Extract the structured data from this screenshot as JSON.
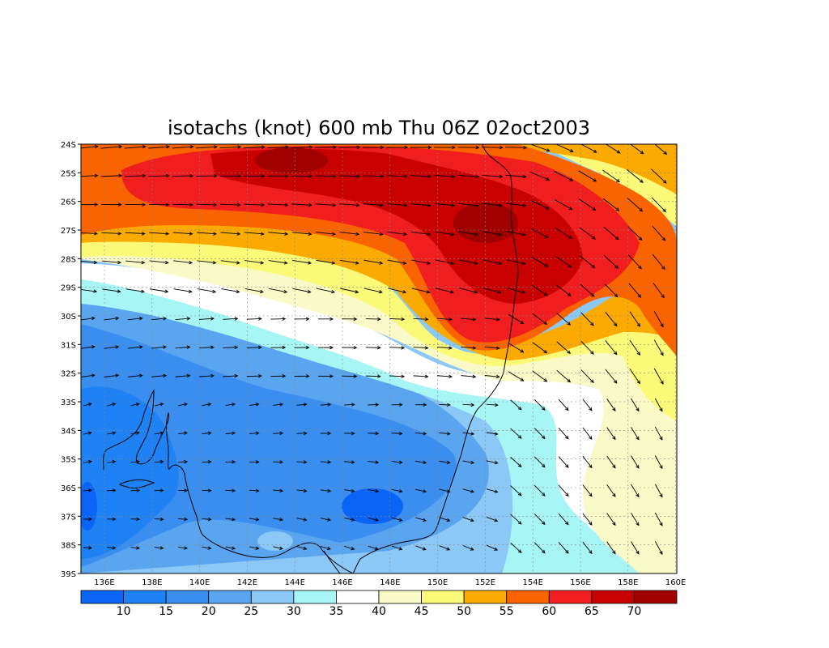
{
  "title": "isotachs (knot) 600 mb Thu 06Z 02oct2003",
  "lat_labels": [
    "24S",
    "25S",
    "26S",
    "27S",
    "28S",
    "29S",
    "30S",
    "31S",
    "32S",
    "33S",
    "34S",
    "35S",
    "36S",
    "37S",
    "38S",
    "39S"
  ],
  "lon_labels": [
    "136E",
    "138E",
    "140E",
    "142E",
    "144E",
    "146E",
    "148E",
    "150E",
    "152E",
    "154E",
    "156E",
    "158E",
    "160E"
  ],
  "colorbar": {
    "labels": [
      "10",
      "15",
      "20",
      "25",
      "30",
      "35",
      "40",
      "45",
      "50",
      "55",
      "60",
      "65",
      "70"
    ],
    "colors": [
      "#0a64f5",
      "#1e82f5",
      "#3a8ef0",
      "#5aa5f0",
      "#8cc8f5",
      "#a8f5f5",
      "#ffffff",
      "#fafac8",
      "#fafa78",
      "#faaa00",
      "#fa6400",
      "#f01e1e",
      "#c80000",
      "#a00000"
    ]
  },
  "field": {
    "variable": "isotachs",
    "unit": "knot",
    "level": "600 mb",
    "valid": "Thu 06Z 02oct2003",
    "lon_range": [
      135,
      160
    ],
    "lat_range": [
      -39,
      -24
    ],
    "features": {
      "jet_core": [
        "#c80000",
        "#a00000"
      ],
      "jet_band": [
        "#f01e1e",
        "#fa6400",
        "#faaa00",
        "#fafa78",
        "#fafac8"
      ],
      "southern_lows": [
        "#0a64f5",
        "#1e82f5",
        "#3a8ef0",
        "#5aa5f0",
        "#8cc8f5",
        "#a8f5f5"
      ]
    }
  }
}
